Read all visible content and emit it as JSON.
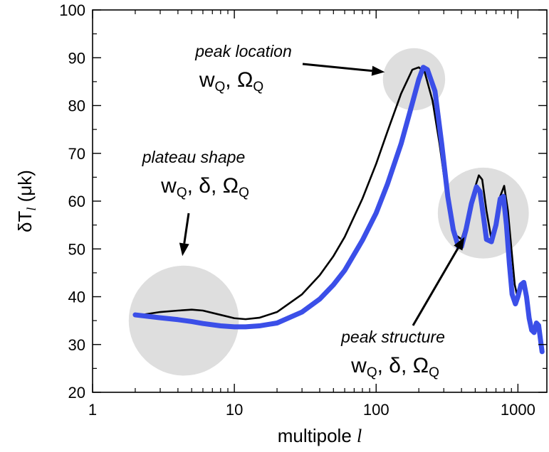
{
  "chart_data": {
    "type": "line",
    "xscale": "log",
    "xlim": [
      1,
      1600
    ],
    "ylim": [
      20,
      100
    ],
    "x_ticks": [
      1,
      10,
      100,
      1000
    ],
    "x_tick_labels": [
      "1",
      "10",
      "100",
      "1000"
    ],
    "y_ticks": [
      20,
      30,
      40,
      50,
      60,
      70,
      80,
      90,
      100
    ],
    "y_tick_labels": [
      "20",
      "30",
      "40",
      "50",
      "60",
      "70",
      "80",
      "90",
      "100"
    ],
    "xlabel": "multipole ",
    "xlabel_italic": "l",
    "ylabel": "δT",
    "ylabel_sub": "l",
    "ylabel_unit": " (μk)",
    "grid": false,
    "legend": "none",
    "series": [
      {
        "color": "#000000",
        "x": [
          2,
          3,
          4,
          5,
          6,
          8,
          10,
          12,
          15,
          20,
          30,
          40,
          50,
          60,
          80,
          100,
          120,
          150,
          180,
          200,
          220,
          250,
          280,
          300,
          330,
          360,
          400,
          450,
          500,
          530,
          560,
          600,
          650,
          700,
          750,
          800,
          850,
          900,
          950,
          1000,
          1050,
          1100,
          1150,
          1200,
          1250,
          1300,
          1350,
          1400,
          1450,
          1480
        ],
        "y": [
          36.0,
          36.8,
          37.1,
          37.3,
          37.1,
          36.2,
          35.5,
          35.3,
          35.6,
          36.8,
          40.5,
          44.5,
          48.5,
          52.5,
          60.5,
          67.8,
          74.5,
          82.5,
          87.5,
          88.0,
          87.0,
          81.0,
          72.0,
          65.5,
          58.0,
          53.0,
          52.0,
          57.0,
          63.0,
          65.4,
          64.5,
          58.0,
          52.0,
          54.5,
          61.0,
          63.2,
          58.0,
          50.0,
          42.5,
          39.5,
          41.5,
          43.0,
          41.0,
          36.5,
          33.5,
          33.5,
          34.8,
          34.0,
          31.0,
          29.5
        ]
      },
      {
        "color": "#3b4fe8",
        "x": [
          2,
          3,
          4,
          5,
          6,
          8,
          10,
          12,
          15,
          20,
          30,
          40,
          50,
          60,
          80,
          100,
          120,
          150,
          180,
          200,
          215,
          230,
          260,
          290,
          320,
          350,
          380,
          400,
          430,
          470,
          510,
          540,
          570,
          600,
          650,
          700,
          750,
          790,
          830,
          870,
          910,
          960,
          1000,
          1050,
          1100,
          1150,
          1200,
          1250,
          1300,
          1350,
          1400,
          1450,
          1480
        ],
        "y": [
          36.2,
          35.6,
          35.2,
          34.8,
          34.4,
          33.9,
          33.7,
          33.7,
          33.9,
          34.5,
          36.8,
          39.5,
          42.5,
          45.5,
          51.8,
          57.5,
          63.5,
          72.0,
          80.5,
          85.5,
          88.0,
          87.5,
          83.0,
          72.0,
          61.0,
          54.0,
          50.5,
          50.5,
          54.0,
          59.5,
          63.0,
          62.0,
          57.0,
          52.0,
          51.5,
          55.0,
          60.5,
          61.0,
          55.0,
          47.0,
          40.5,
          38.5,
          40.0,
          42.5,
          43.0,
          40.0,
          35.5,
          33.0,
          32.5,
          34.5,
          34.0,
          30.5,
          28.5
        ]
      }
    ],
    "highlight_circles": [
      {
        "x": 4.4,
        "y": 35.0,
        "radius": 11.5
      },
      {
        "x": 185,
        "y": 85.5,
        "radius": 6.5
      },
      {
        "x": 570,
        "y": 57.5,
        "radius": 9.5
      }
    ],
    "annotations": [
      {
        "title": "peak location",
        "params": [
          {
            "t": "w"
          },
          {
            "t": "Q",
            "sub": true
          },
          {
            "t": ", Ω"
          },
          {
            "t": "Q",
            "sub": true
          }
        ],
        "arrow_to": [
          115,
          87.0
        ]
      },
      {
        "title": "plateau shape",
        "params": [
          {
            "t": "w"
          },
          {
            "t": "Q",
            "sub": true
          },
          {
            "t": ", δ, Ω"
          },
          {
            "t": "Q",
            "sub": true
          }
        ],
        "arrow_to": [
          4.3,
          48.5
        ]
      },
      {
        "title": "peak structure",
        "params": [
          {
            "t": "w"
          },
          {
            "t": "Q",
            "sub": true
          },
          {
            "t": ", δ, Ω"
          },
          {
            "t": "Q",
            "sub": true
          }
        ],
        "arrow_to": [
          420,
          52.5
        ]
      }
    ]
  }
}
